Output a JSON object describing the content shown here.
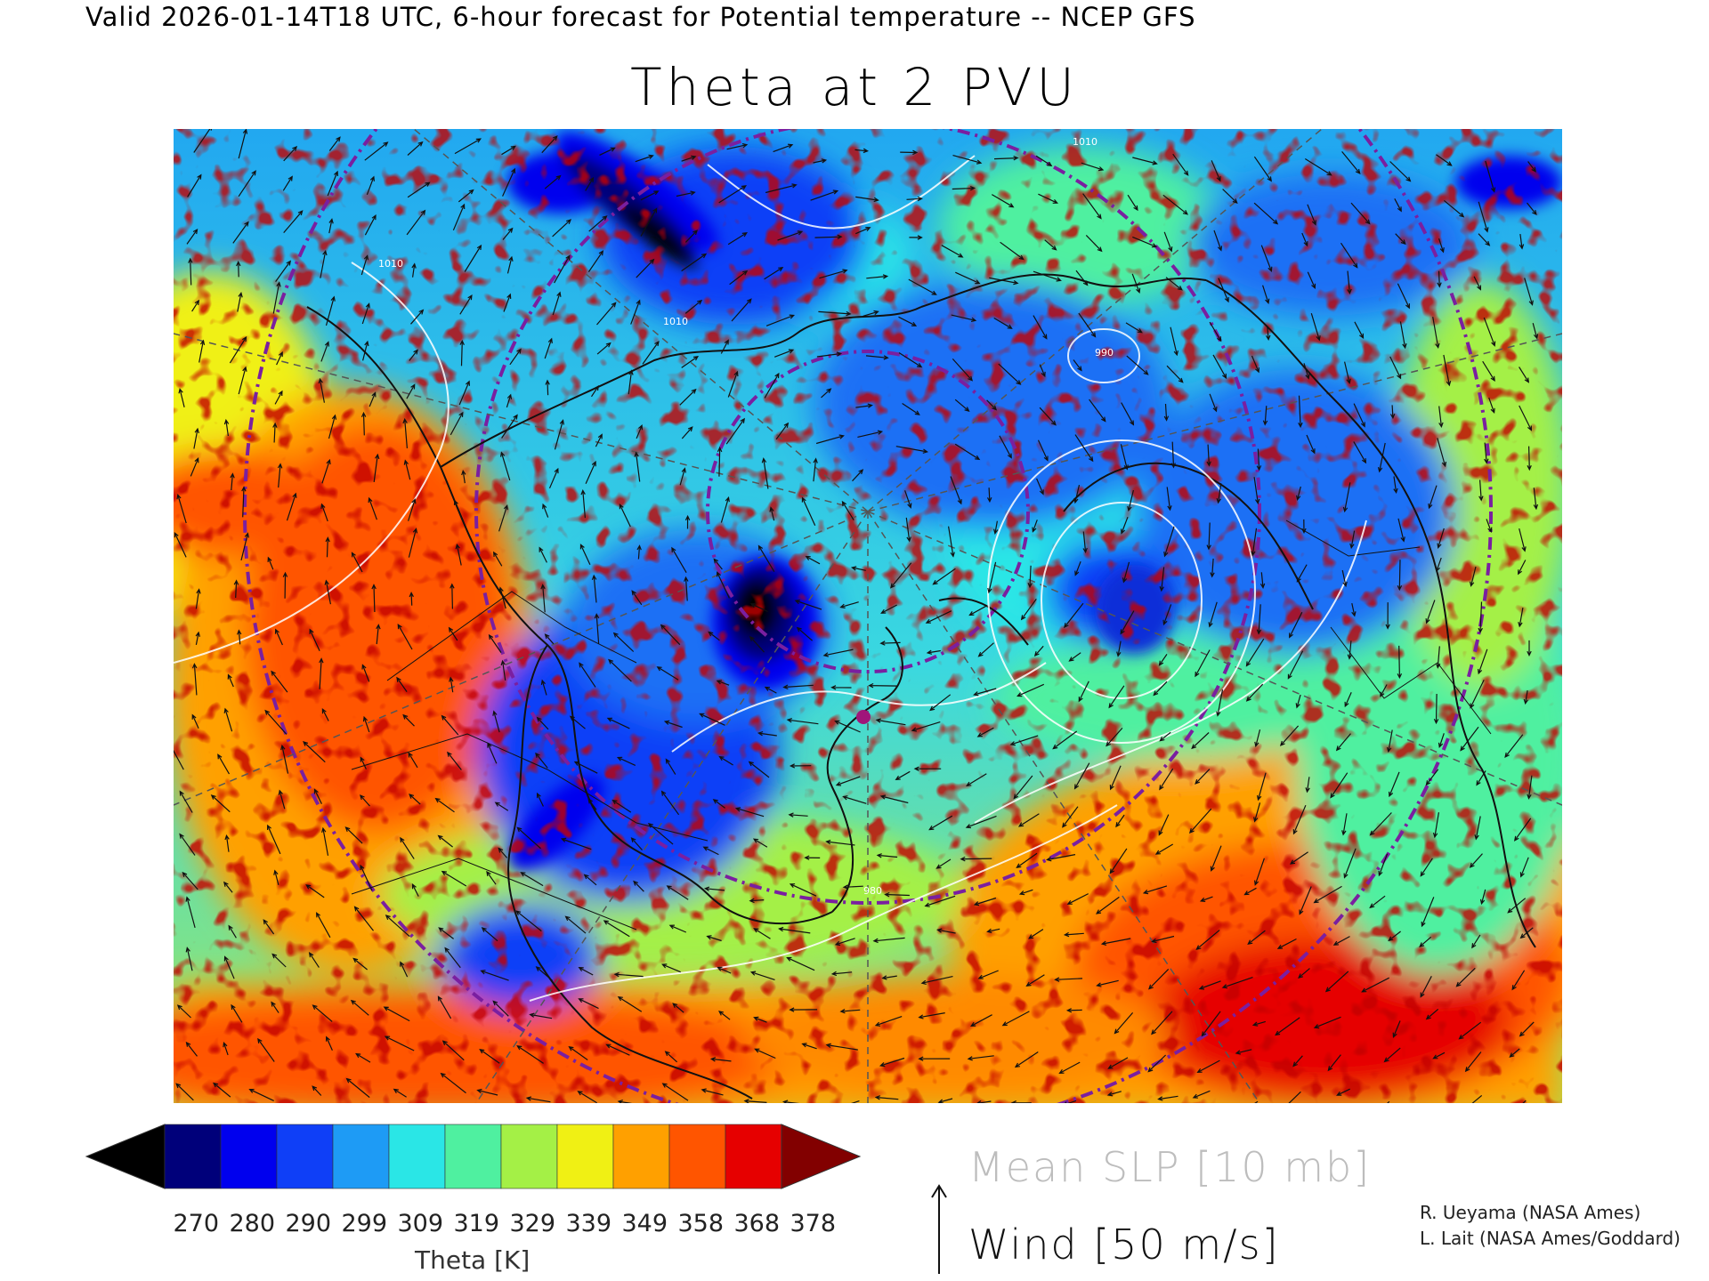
{
  "header": {
    "valid_line": "Valid 2026-01-14T18 UTC, 6-hour forecast for Potential temperature -- NCEP GFS",
    "title": "Theta at 2 PVU"
  },
  "map": {
    "projection": "north polar stereographic",
    "slp_contour_labels": [
      "1010",
      "1010",
      "990",
      "1010",
      "980"
    ]
  },
  "colorbar": {
    "label": "Theta [K]",
    "ticks": [
      "270",
      "280",
      "290",
      "299",
      "309",
      "319",
      "329",
      "339",
      "349",
      "358",
      "368",
      "378"
    ],
    "colors": [
      "#000000",
      "#00007a",
      "#0000ee",
      "#0f3ff7",
      "#1e9bf5",
      "#2ae6e6",
      "#4ff0a0",
      "#a4f046",
      "#f0f014",
      "#ffa000",
      "#ff5500",
      "#e60000",
      "#820000"
    ]
  },
  "legend": {
    "slp": "Mean SLP [10 mb]",
    "wind": "Wind [50 m/s]"
  },
  "credits": [
    "R. Ueyama (NASA Ames)",
    "L. Lait (NASA Ames/Goddard)"
  ]
}
